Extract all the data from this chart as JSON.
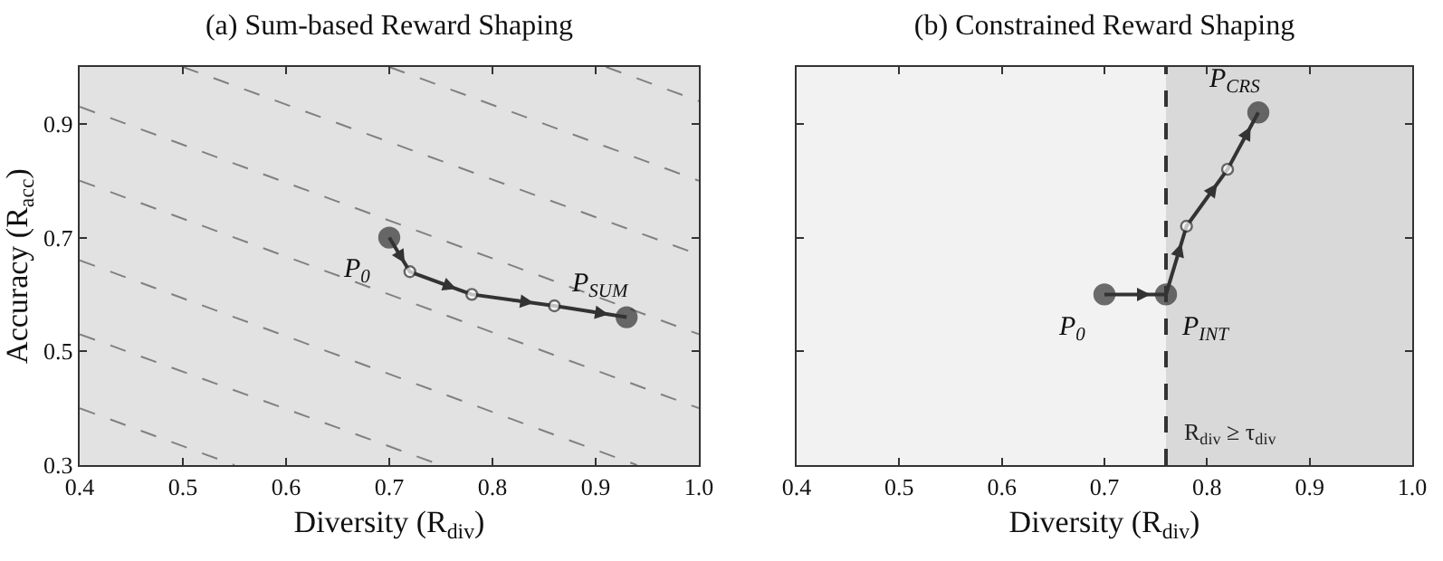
{
  "chart_data": [
    {
      "type": "line",
      "title": "(a) Sum-based Reward Shaping",
      "xlabel": "Diversity (R$_{div}$)",
      "ylabel": "Accuracy (R$_{acc}$)",
      "xlim": [
        0.4,
        1.0
      ],
      "ylim": [
        0.3,
        1.0
      ],
      "xticks": [
        0.4,
        0.5,
        0.6,
        0.7,
        0.8,
        0.9,
        {
          "value": 1.0,
          "label": "1.0"
        }
      ],
      "yticks": [
        0.3,
        0.5,
        0.7,
        0.9
      ],
      "grid": false,
      "series": [
        {
          "color": "#808080",
          "line_style": "dashed",
          "marker": "none",
          "x": [
            0.4,
            0.55
          ],
          "values": [
            0.4,
            0.3
          ]
        },
        {
          "color": "#808080",
          "line_style": "dashed",
          "marker": "none",
          "x": [
            0.4,
            0.75
          ],
          "values": [
            0.53,
            0.3
          ]
        },
        {
          "color": "#808080",
          "line_style": "dashed",
          "marker": "none",
          "x": [
            0.4,
            0.94
          ],
          "values": [
            0.66,
            0.3
          ]
        },
        {
          "color": "#808080",
          "line_style": "dashed",
          "marker": "none",
          "x": [
            0.4,
            1.0
          ],
          "values": [
            0.8,
            0.4
          ]
        },
        {
          "color": "#808080",
          "line_style": "dashed",
          "marker": "none",
          "x": [
            0.4,
            1.0
          ],
          "values": [
            0.93,
            0.53
          ]
        },
        {
          "color": "#808080",
          "line_style": "dashed",
          "marker": "none",
          "x": [
            0.5,
            1.0
          ],
          "values": [
            1.0,
            0.67
          ]
        },
        {
          "color": "#808080",
          "line_style": "dashed",
          "marker": "none",
          "x": [
            0.7,
            1.0
          ],
          "values": [
            1.0,
            0.8
          ]
        },
        {
          "color": "#808080",
          "line_style": "dashed",
          "marker": "none",
          "x": [
            0.91,
            1.0
          ],
          "values": [
            1.0,
            0.94
          ]
        },
        {
          "color": "#333333",
          "line_style": "solid",
          "marker": "circle",
          "x": [
            0.7,
            0.72,
            0.78,
            0.86,
            0.93
          ],
          "values": [
            0.7,
            0.64,
            0.6,
            0.58,
            0.56
          ],
          "colors": [
            "#333333",
            "#ffffff",
            "#ffffff",
            "#ffffff",
            "#333333"
          ]
        }
      ],
      "annotations": [
        {
          "text": "P$_{0}$",
          "x": 0.7,
          "y": 0.7
        },
        {
          "text": "P$_{SUM}$",
          "x": 0.93,
          "y": 0.56
        }
      ]
    },
    {
      "type": "line",
      "title": "(b) Constrained Reward Shaping",
      "xlabel": "Diversity (R$_{div}$)",
      "xlim": [
        0.4,
        1.0
      ],
      "ylim": [
        0.3,
        1.0
      ],
      "xticks": [
        0.4,
        0.5,
        0.6,
        0.7,
        0.8,
        0.9,
        {
          "value": 1.0,
          "label": "1.0"
        }
      ],
      "yticks": [
        0.3,
        0.5,
        0.7,
        0.9
      ],
      "tick_labels": "x",
      "grid": false,
      "bands": [
        {
          "axis": "x",
          "from": 0.76,
          "to": 1.0,
          "color": "#d9d9d9"
        }
      ],
      "ref_lines": [
        {
          "axis": "x",
          "value": 0.76,
          "label": "R$_{div}$ ≥ τ$_{div}$",
          "color": "#333333",
          "line_style": "dashed"
        }
      ],
      "series": [
        {
          "color": "#333333",
          "line_style": "solid",
          "marker": "circle",
          "x": [
            0.7,
            0.76,
            0.78,
            0.82,
            0.85
          ],
          "values": [
            0.6,
            0.6,
            0.72,
            0.82,
            0.92
          ],
          "colors": [
            "#333333",
            "#333333",
            "#ffffff",
            "#ffffff",
            "#333333"
          ]
        }
      ],
      "annotations": [
        {
          "text": "P$_{0}$",
          "x": 0.7,
          "y": 0.6
        },
        {
          "text": "P$_{INT}$",
          "x": 0.76,
          "y": 0.6
        },
        {
          "text": "P$_{CRS}$",
          "x": 0.85,
          "y": 0.92
        }
      ]
    }
  ]
}
